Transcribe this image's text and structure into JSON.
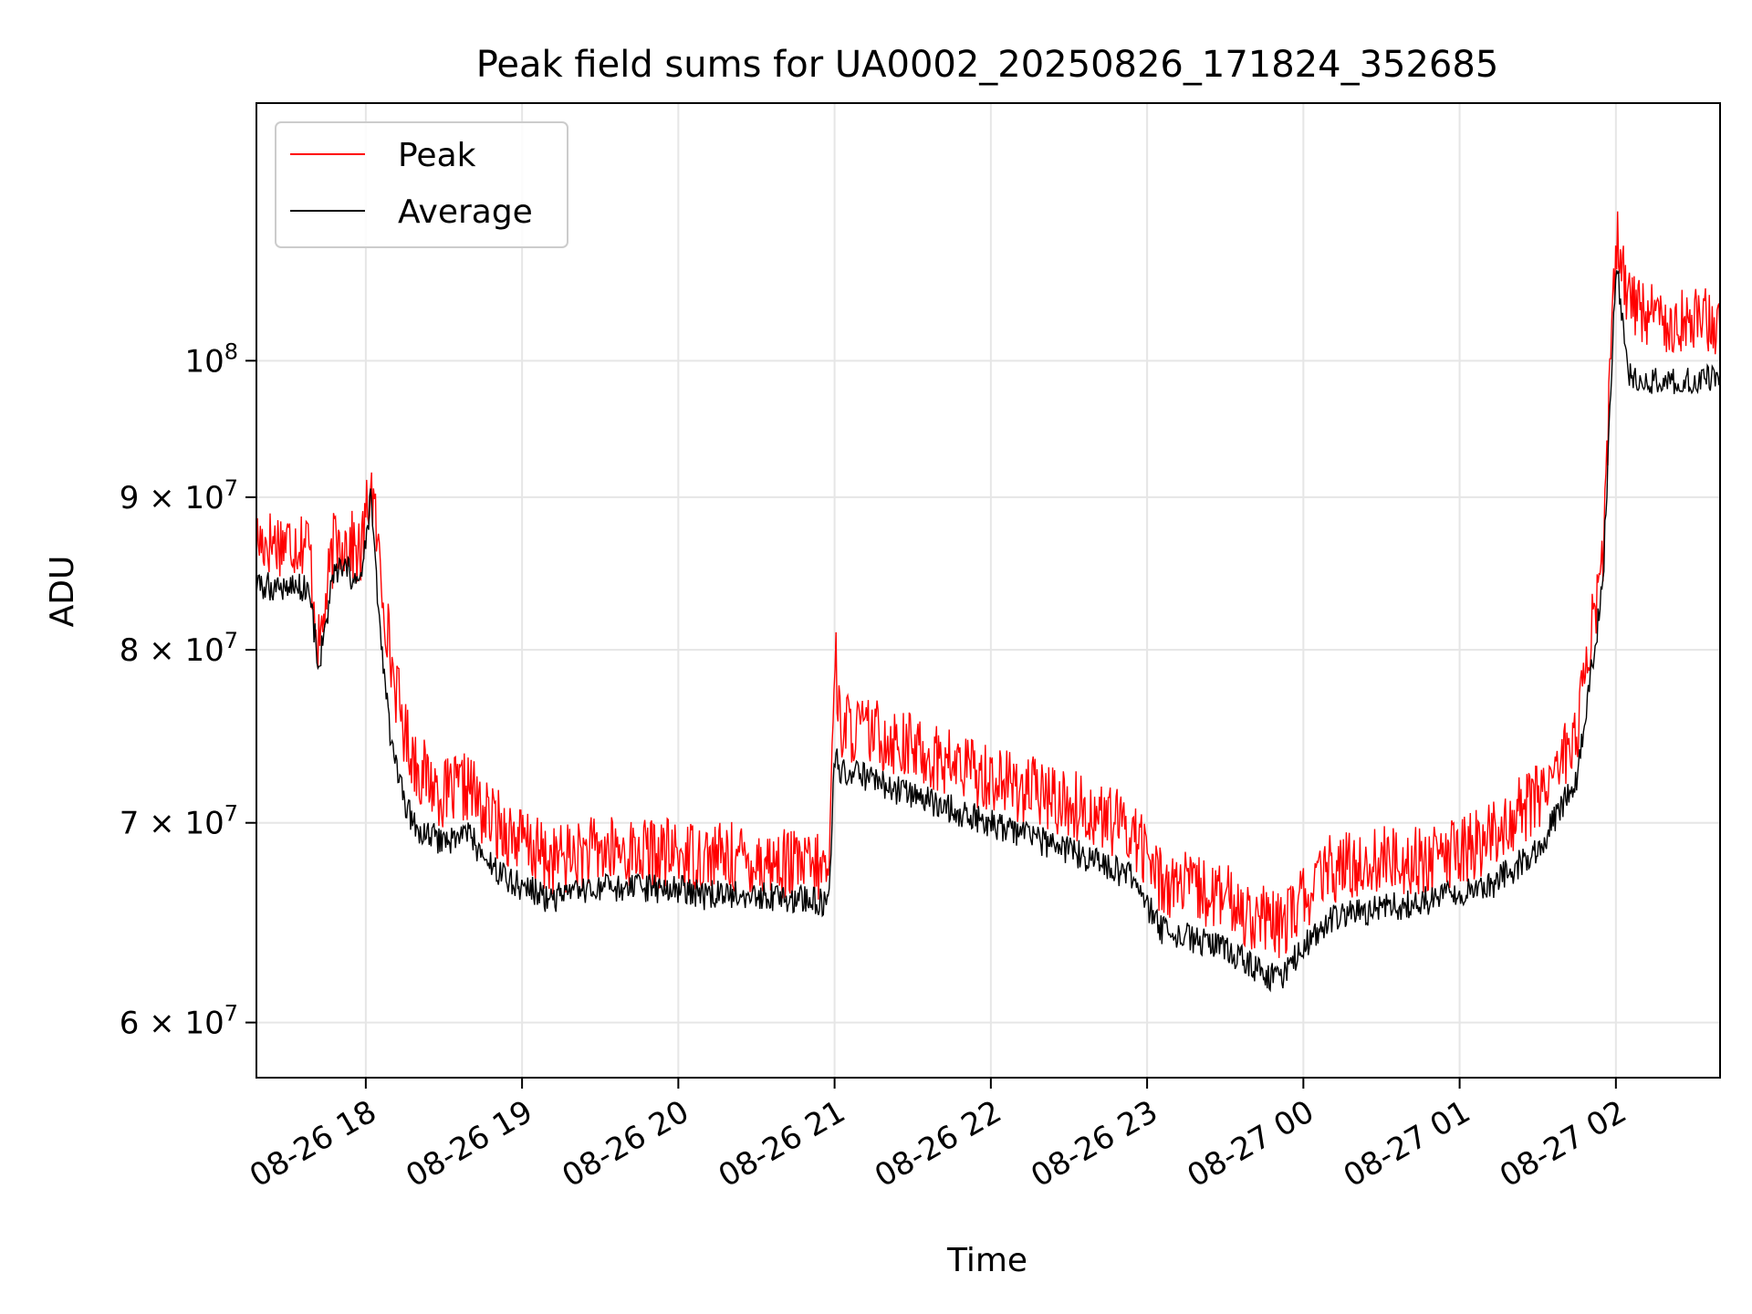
{
  "chart_data": {
    "type": "line",
    "title": "Peak field sums for UA0002_20250826_171824_352685",
    "xlabel": "Time",
    "ylabel": "ADU",
    "y_scale": "log",
    "xlim": [
      "2025-08-26 17:18",
      "2025-08-27 02:40"
    ],
    "ylim": [
      57500000,
      122000000
    ],
    "grid": true,
    "legend_position": "top-left",
    "x_ticks": [
      "2025-08-26 18:00",
      "2025-08-26 19:00",
      "2025-08-26 20:00",
      "2025-08-26 21:00",
      "2025-08-26 22:00",
      "2025-08-26 23:00",
      "2025-08-27 00:00",
      "2025-08-27 01:00",
      "2025-08-27 02:00"
    ],
    "x_tick_labels": [
      "08-26 18",
      "08-26 19",
      "08-26 20",
      "08-26 21",
      "08-26 22",
      "08-26 23",
      "08-27 00",
      "08-27 01",
      "08-27 02"
    ],
    "y_ticks": [
      60000000,
      70000000,
      80000000,
      90000000,
      100000000
    ],
    "y_tick_labels": [
      {
        "mantissa": "6",
        "times": "×",
        "base": "10",
        "exp": "7"
      },
      {
        "mantissa": "7",
        "times": "×",
        "base": "10",
        "exp": "7"
      },
      {
        "mantissa": "8",
        "times": "×",
        "base": "10",
        "exp": "7"
      },
      {
        "mantissa": "9",
        "times": "×",
        "base": "10",
        "exp": "7"
      },
      {
        "mantissa": "",
        "times": "",
        "base": "10",
        "exp": "8"
      }
    ],
    "series": [
      {
        "name": "Peak",
        "color": "#ff0000",
        "x": [
          "2025-08-26 17:18",
          "2025-08-26 17:30",
          "2025-08-26 17:38",
          "2025-08-26 17:42",
          "2025-08-26 17:48",
          "2025-08-26 17:53",
          "2025-08-26 17:58",
          "2025-08-26 18:02",
          "2025-08-26 18:05",
          "2025-08-26 18:10",
          "2025-08-26 18:15",
          "2025-08-26 18:20",
          "2025-08-26 18:30",
          "2025-08-26 18:40",
          "2025-08-26 18:45",
          "2025-08-26 18:55",
          "2025-08-26 19:10",
          "2025-08-26 19:30",
          "2025-08-26 20:00",
          "2025-08-26 20:10",
          "2025-08-26 20:30",
          "2025-08-26 20:58",
          "2025-08-26 21:00",
          "2025-08-26 21:02",
          "2025-08-26 21:20",
          "2025-08-26 21:40",
          "2025-08-26 22:00",
          "2025-08-26 22:20",
          "2025-08-26 22:40",
          "2025-08-26 22:55",
          "2025-08-26 23:05",
          "2025-08-26 23:30",
          "2025-08-26 23:50",
          "2025-08-27 00:00",
          "2025-08-27 00:10",
          "2025-08-27 00:30",
          "2025-08-27 00:50",
          "2025-08-27 01:10",
          "2025-08-27 01:30",
          "2025-08-27 01:45",
          "2025-08-27 01:55",
          "2025-08-27 02:00",
          "2025-08-27 02:05",
          "2025-08-27 02:15",
          "2025-08-27 02:40"
        ],
        "y": [
          87000000,
          87000000,
          87000000,
          80000000,
          87000000,
          87000000,
          86000000,
          91000000,
          86000000,
          79000000,
          75000000,
          73000000,
          71500000,
          72000000,
          70500000,
          69500000,
          68000000,
          68500000,
          68300000,
          68300000,
          68000000,
          67500000,
          80500000,
          75500000,
          74800000,
          73500000,
          72500000,
          71500000,
          70500000,
          69500000,
          67000000,
          66000000,
          64500000,
          66000000,
          67500000,
          68000000,
          68000000,
          69000000,
          71500000,
          75000000,
          86000000,
          110000000,
          105000000,
          103500000,
          103000000
        ]
      },
      {
        "name": "Average",
        "color": "#000000",
        "x": [
          "2025-08-26 17:18",
          "2025-08-26 17:30",
          "2025-08-26 17:38",
          "2025-08-26 17:42",
          "2025-08-26 17:48",
          "2025-08-26 17:53",
          "2025-08-26 17:58",
          "2025-08-26 18:02",
          "2025-08-26 18:05",
          "2025-08-26 18:10",
          "2025-08-26 18:15",
          "2025-08-26 18:20",
          "2025-08-26 18:30",
          "2025-08-26 18:40",
          "2025-08-26 18:45",
          "2025-08-26 18:55",
          "2025-08-26 19:10",
          "2025-08-26 19:30",
          "2025-08-26 20:00",
          "2025-08-26 20:10",
          "2025-08-26 20:30",
          "2025-08-26 20:58",
          "2025-08-26 21:00",
          "2025-08-26 21:02",
          "2025-08-26 21:20",
          "2025-08-26 21:40",
          "2025-08-26 22:00",
          "2025-08-26 22:20",
          "2025-08-26 22:40",
          "2025-08-26 22:55",
          "2025-08-26 23:05",
          "2025-08-26 23:30",
          "2025-08-26 23:50",
          "2025-08-27 00:00",
          "2025-08-27 00:10",
          "2025-08-27 00:30",
          "2025-08-27 00:50",
          "2025-08-27 01:10",
          "2025-08-27 01:30",
          "2025-08-27 01:45",
          "2025-08-27 01:55",
          "2025-08-27 02:00",
          "2025-08-27 02:05",
          "2025-08-27 02:15",
          "2025-08-27 02:40"
        ],
        "y": [
          84000000,
          84000000,
          84000000,
          79000000,
          85000000,
          85000000,
          84000000,
          90000000,
          82000000,
          74000000,
          71000000,
          69500000,
          69000000,
          69500000,
          68000000,
          67000000,
          66000000,
          66500000,
          66500000,
          66200000,
          66200000,
          65800000,
          74000000,
          73000000,
          72000000,
          71000000,
          70000000,
          69000000,
          68000000,
          67000000,
          64500000,
          63500000,
          62000000,
          63500000,
          65000000,
          65500000,
          66000000,
          66500000,
          68500000,
          72500000,
          84000000,
          108000000,
          99000000,
          98500000,
          98500000
        ]
      }
    ]
  }
}
